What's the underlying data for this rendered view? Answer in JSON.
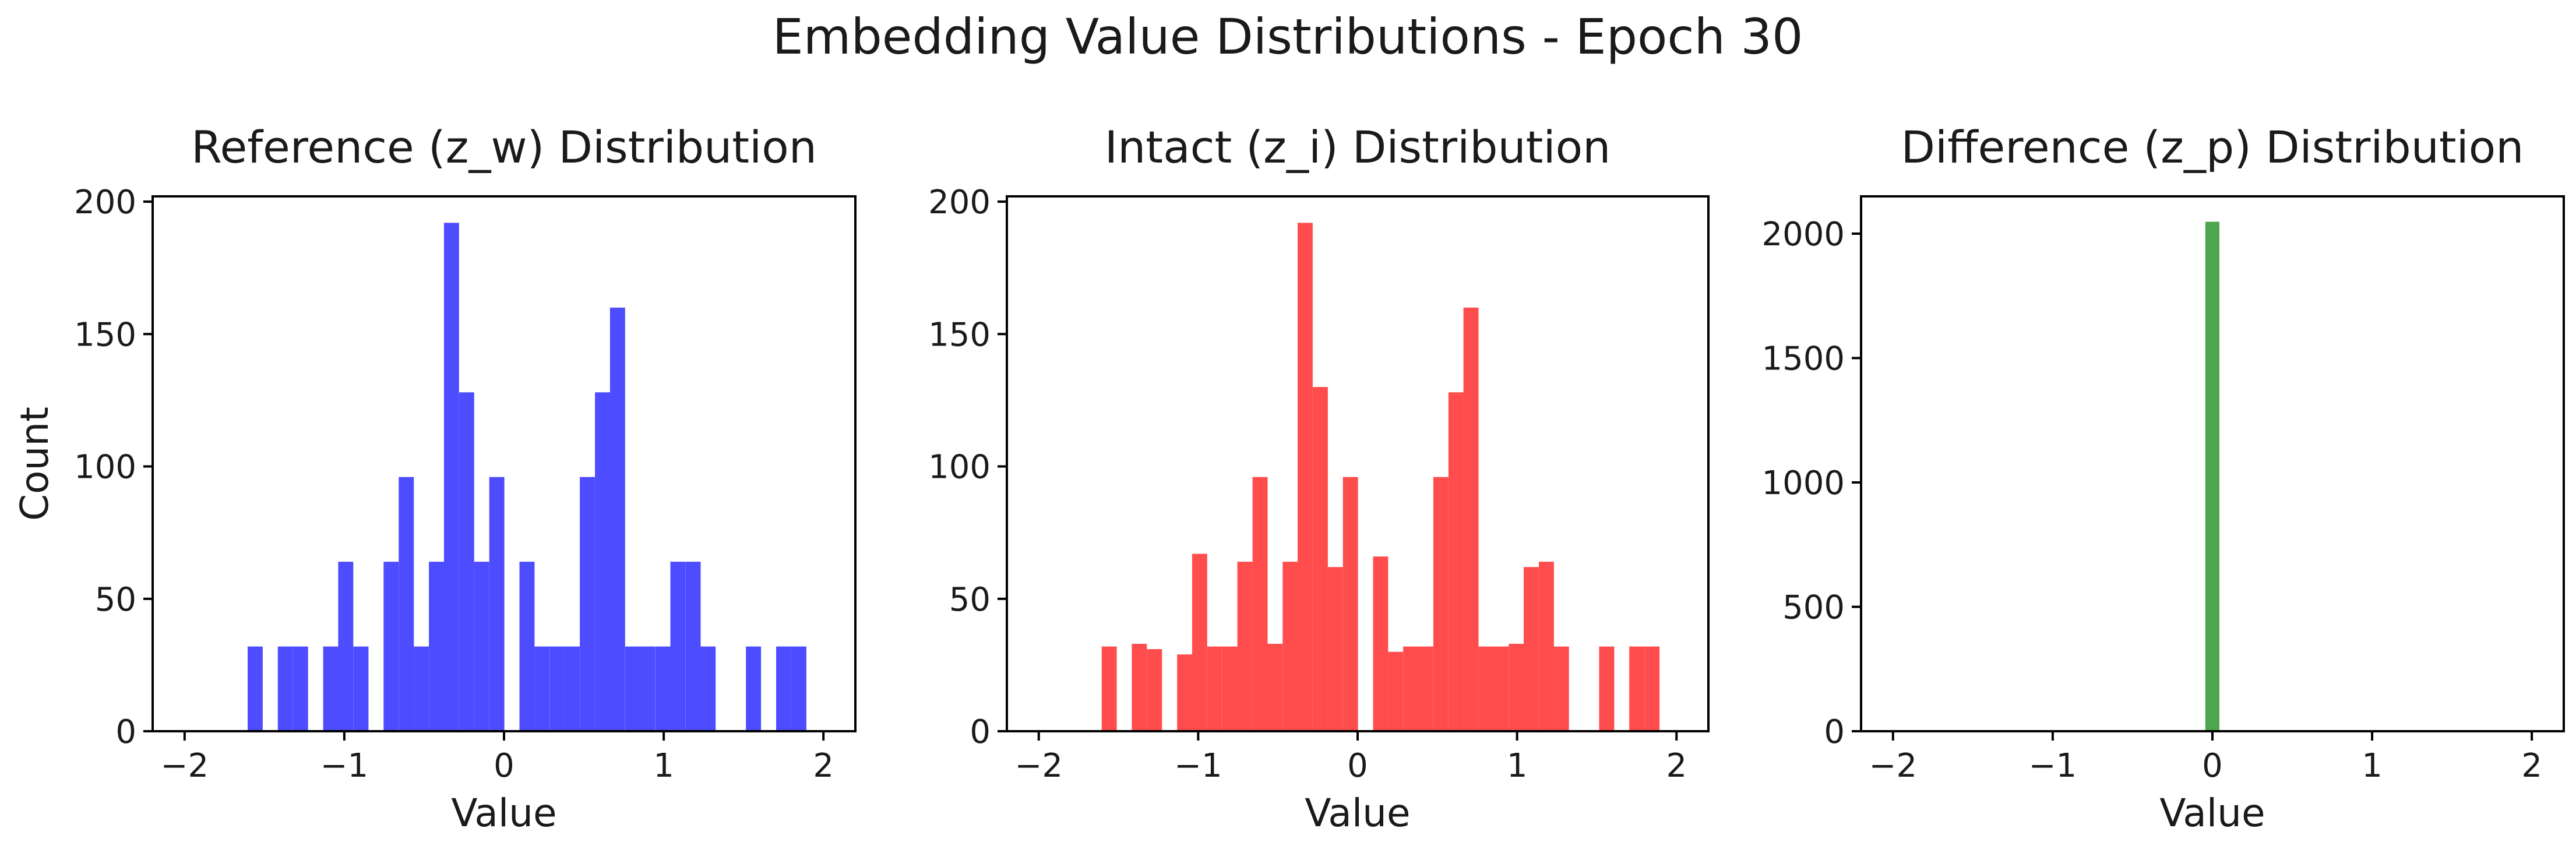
{
  "figure_title": "Embedding Value Distributions - Epoch 30",
  "chart_data": [
    {
      "type": "bar",
      "title": "Reference (z_w) Distribution",
      "xlabel": "Value",
      "ylabel": "Count",
      "color": "#4d4dff",
      "xlim": [
        -2.2,
        2.2
      ],
      "ylim": [
        0,
        202
      ],
      "xticks": [
        -2,
        -1,
        0,
        1,
        2
      ],
      "xtick_labels": [
        "−2",
        "−1",
        "0",
        "1",
        "2"
      ],
      "yticks": [
        0,
        50,
        100,
        150,
        200
      ],
      "ytick_labels": [
        "0",
        "50",
        "100",
        "150",
        "200"
      ],
      "bin_width": 0.0946,
      "bins": [
        {
          "x": -1.558,
          "count": 32
        },
        {
          "x": -1.369,
          "count": 32
        },
        {
          "x": -1.274,
          "count": 32
        },
        {
          "x": -1.085,
          "count": 32
        },
        {
          "x": -0.991,
          "count": 64
        },
        {
          "x": -0.896,
          "count": 32
        },
        {
          "x": -0.707,
          "count": 64
        },
        {
          "x": -0.612,
          "count": 96
        },
        {
          "x": -0.518,
          "count": 32
        },
        {
          "x": -0.423,
          "count": 64
        },
        {
          "x": -0.329,
          "count": 192
        },
        {
          "x": -0.234,
          "count": 128
        },
        {
          "x": -0.14,
          "count": 64
        },
        {
          "x": -0.045,
          "count": 96
        },
        {
          "x": 0.144,
          "count": 64
        },
        {
          "x": 0.238,
          "count": 32
        },
        {
          "x": 0.333,
          "count": 32
        },
        {
          "x": 0.427,
          "count": 32
        },
        {
          "x": 0.522,
          "count": 96
        },
        {
          "x": 0.617,
          "count": 128
        },
        {
          "x": 0.711,
          "count": 160
        },
        {
          "x": 0.806,
          "count": 32
        },
        {
          "x": 0.9,
          "count": 32
        },
        {
          "x": 0.995,
          "count": 32
        },
        {
          "x": 1.089,
          "count": 64
        },
        {
          "x": 1.184,
          "count": 64
        },
        {
          "x": 1.278,
          "count": 32
        },
        {
          "x": 1.562,
          "count": 32
        },
        {
          "x": 1.751,
          "count": 32
        },
        {
          "x": 1.846,
          "count": 32
        }
      ]
    },
    {
      "type": "bar",
      "title": "Intact (z_i) Distribution",
      "xlabel": "Value",
      "ylabel": "",
      "color": "#ff4d4d",
      "xlim": [
        -2.2,
        2.2
      ],
      "ylim": [
        0,
        202
      ],
      "xticks": [
        -2,
        -1,
        0,
        1,
        2
      ],
      "xtick_labels": [
        "−2",
        "−1",
        "0",
        "1",
        "2"
      ],
      "yticks": [
        0,
        50,
        100,
        150,
        200
      ],
      "ytick_labels": [
        "0",
        "50",
        "100",
        "150",
        "200"
      ],
      "bin_width": 0.0946,
      "bins": [
        {
          "x": -1.558,
          "count": 32
        },
        {
          "x": -1.369,
          "count": 33
        },
        {
          "x": -1.274,
          "count": 31
        },
        {
          "x": -1.085,
          "count": 29
        },
        {
          "x": -0.991,
          "count": 67
        },
        {
          "x": -0.896,
          "count": 32
        },
        {
          "x": -0.801,
          "count": 32
        },
        {
          "x": -0.707,
          "count": 64
        },
        {
          "x": -0.612,
          "count": 96
        },
        {
          "x": -0.518,
          "count": 33
        },
        {
          "x": -0.423,
          "count": 64
        },
        {
          "x": -0.329,
          "count": 192
        },
        {
          "x": -0.234,
          "count": 130
        },
        {
          "x": -0.14,
          "count": 62
        },
        {
          "x": -0.045,
          "count": 96
        },
        {
          "x": 0.144,
          "count": 66
        },
        {
          "x": 0.238,
          "count": 30
        },
        {
          "x": 0.333,
          "count": 32
        },
        {
          "x": 0.427,
          "count": 32
        },
        {
          "x": 0.522,
          "count": 96
        },
        {
          "x": 0.617,
          "count": 128
        },
        {
          "x": 0.711,
          "count": 160
        },
        {
          "x": 0.806,
          "count": 32
        },
        {
          "x": 0.9,
          "count": 32
        },
        {
          "x": 0.995,
          "count": 33
        },
        {
          "x": 1.089,
          "count": 62
        },
        {
          "x": 1.184,
          "count": 64
        },
        {
          "x": 1.278,
          "count": 32
        },
        {
          "x": 1.562,
          "count": 32
        },
        {
          "x": 1.751,
          "count": 32
        },
        {
          "x": 1.846,
          "count": 32
        }
      ]
    },
    {
      "type": "bar",
      "title": "Difference (z_p) Distribution",
      "xlabel": "Value",
      "ylabel": "",
      "color": "#4da64d",
      "xlim": [
        -2.2,
        2.2
      ],
      "ylim": [
        0,
        2150
      ],
      "xticks": [
        -2,
        -1,
        0,
        1,
        2
      ],
      "xtick_labels": [
        "−2",
        "−1",
        "0",
        "1",
        "2"
      ],
      "yticks": [
        0,
        500,
        1000,
        1500,
        2000
      ],
      "ytick_labels": [
        "0",
        "500",
        "1000",
        "1500",
        "2000"
      ],
      "bin_width": 0.088,
      "bins": [
        {
          "x": 0.0,
          "count": 2048
        }
      ]
    }
  ]
}
